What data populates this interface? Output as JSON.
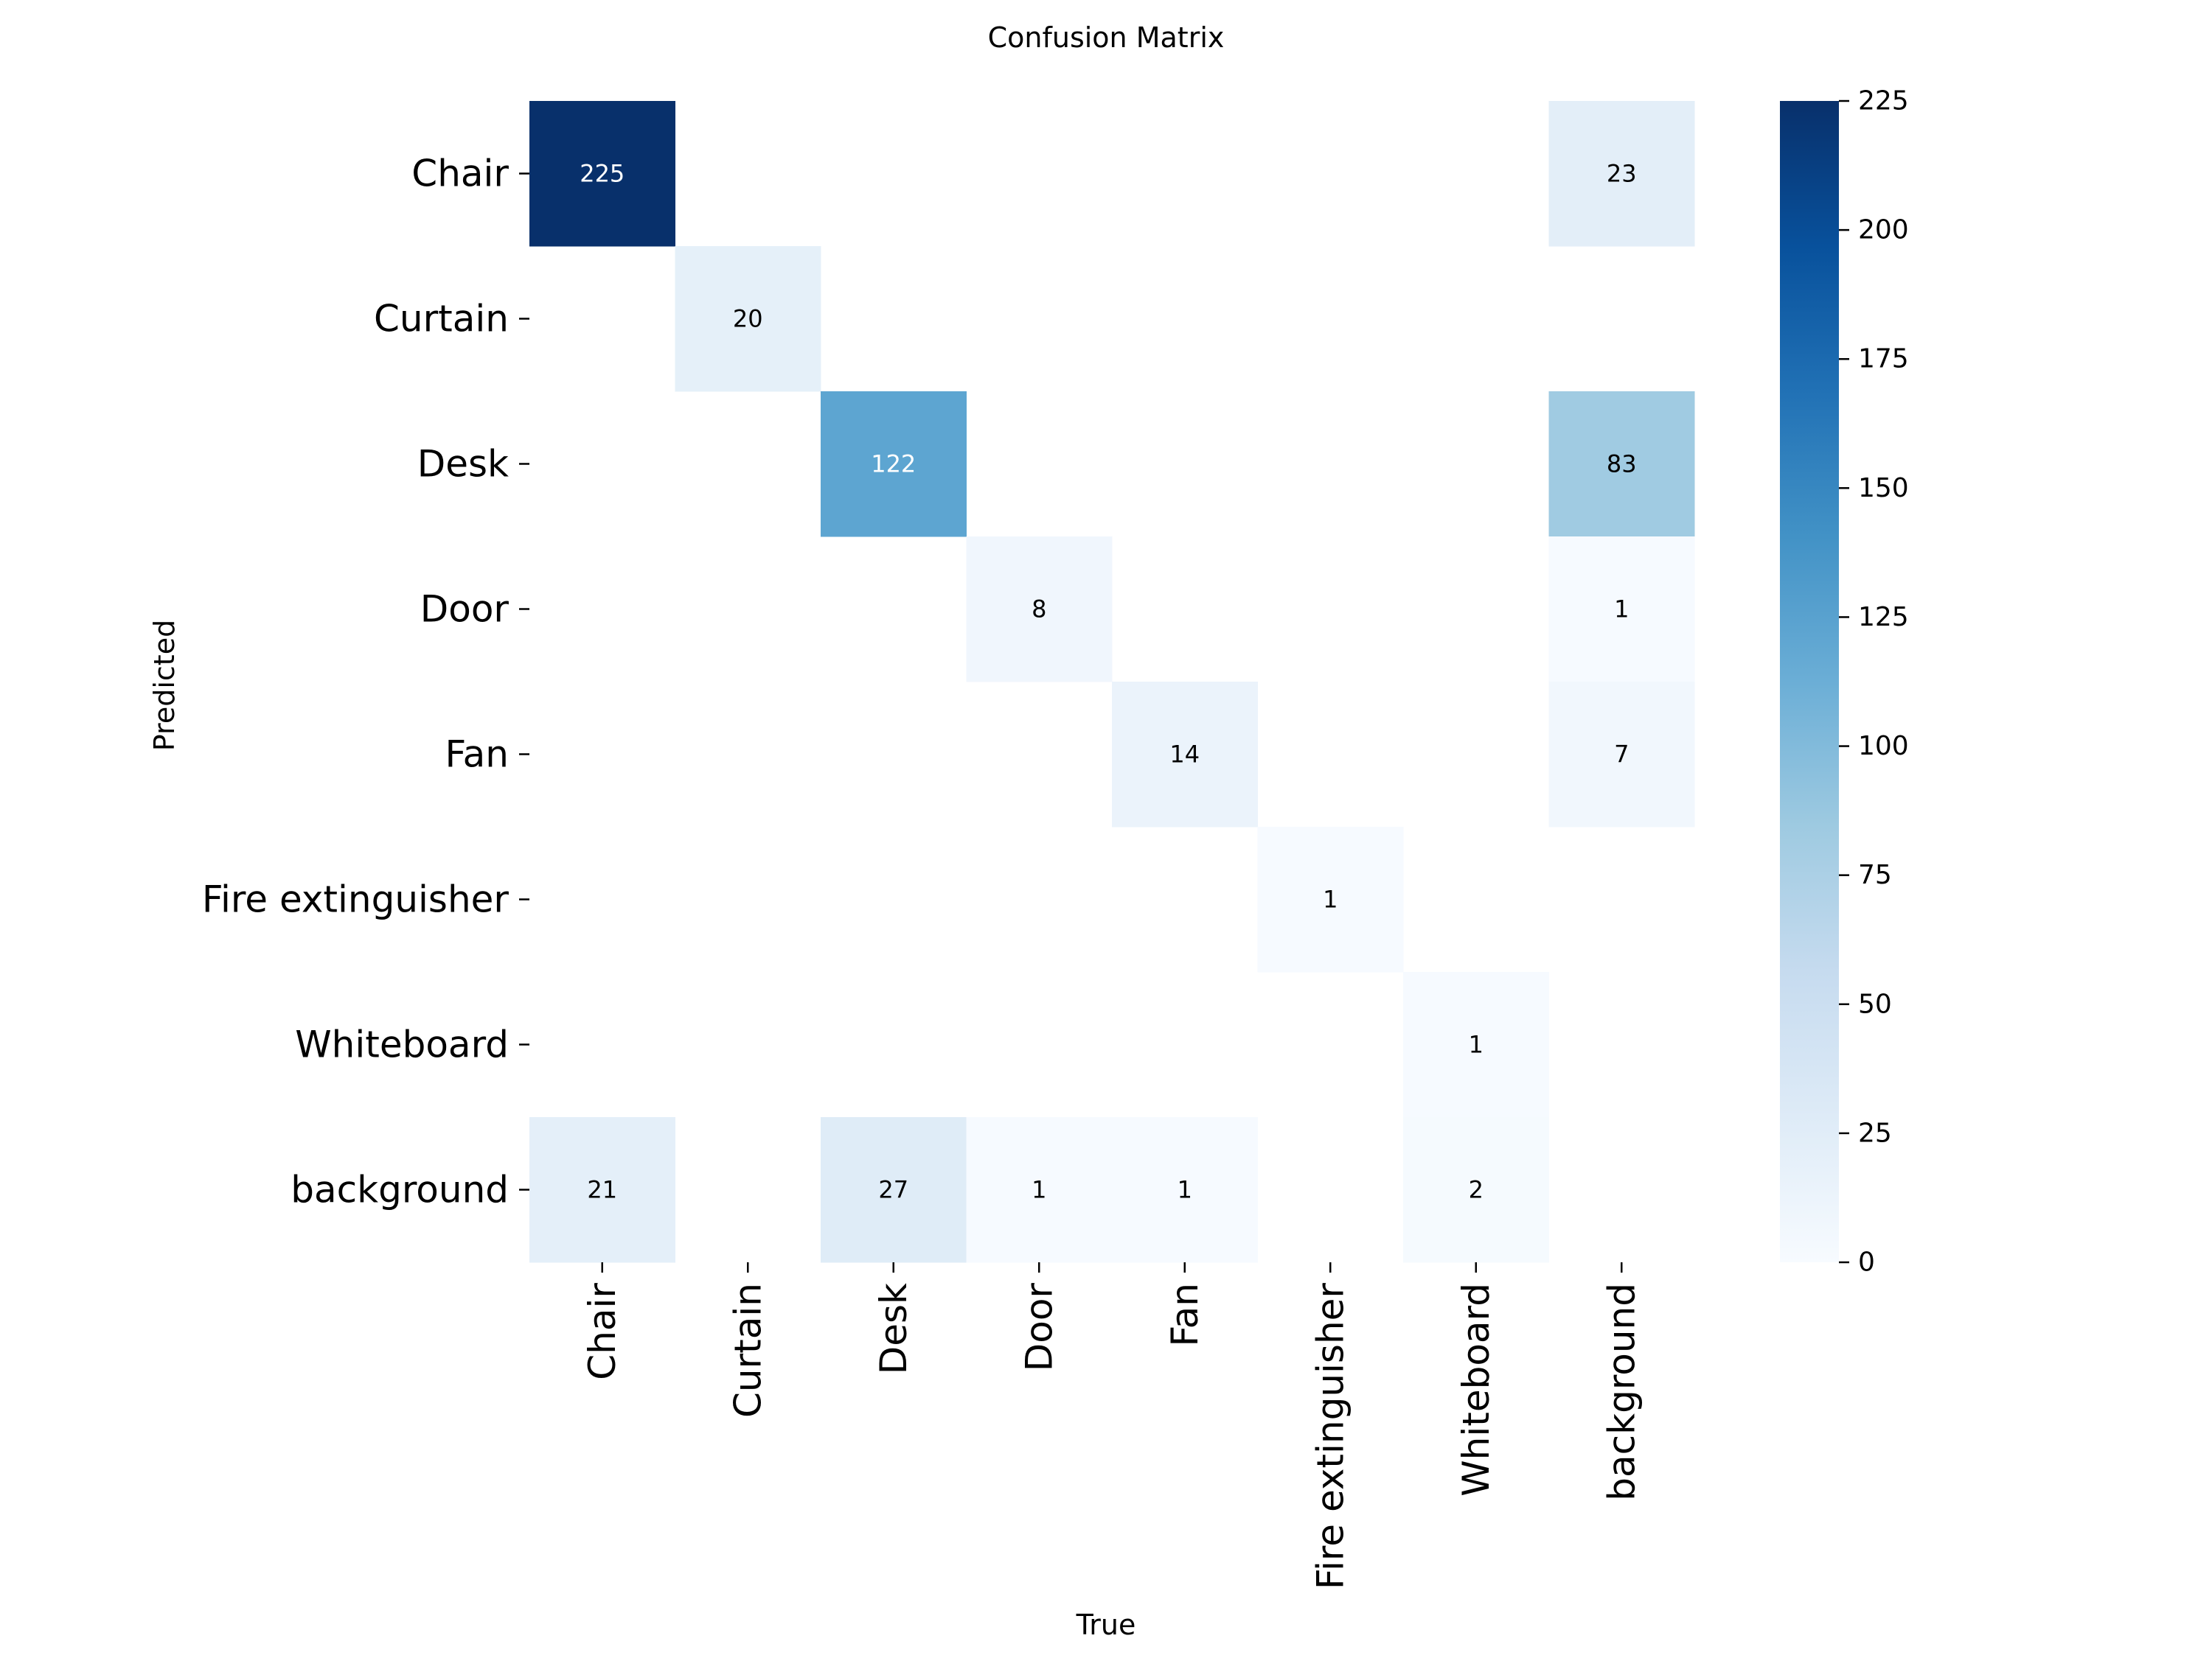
{
  "chart_data": {
    "type": "heatmap",
    "title": "Confusion Matrix",
    "xlabel": "True",
    "ylabel": "Predicted",
    "x_categories": [
      "Chair",
      "Curtain",
      "Desk",
      "Door",
      "Fan",
      "Fire extinguisher",
      "Whiteboard",
      "background"
    ],
    "y_categories": [
      "Chair",
      "Curtain",
      "Desk",
      "Door",
      "Fan",
      "Fire extinguisher",
      "Whiteboard",
      "background"
    ],
    "values": [
      [
        225,
        null,
        null,
        null,
        null,
        null,
        null,
        23
      ],
      [
        null,
        20,
        null,
        null,
        null,
        null,
        null,
        null
      ],
      [
        null,
        null,
        122,
        null,
        null,
        null,
        null,
        83
      ],
      [
        null,
        null,
        null,
        8,
        null,
        null,
        null,
        1
      ],
      [
        null,
        null,
        null,
        null,
        14,
        null,
        null,
        7
      ],
      [
        null,
        null,
        null,
        null,
        null,
        1,
        null,
        null
      ],
      [
        null,
        null,
        null,
        null,
        null,
        null,
        1,
        null
      ],
      [
        21,
        null,
        27,
        1,
        1,
        null,
        2,
        null
      ]
    ],
    "colormap": "Blues",
    "colorbar": {
      "range": [
        0,
        225
      ],
      "ticks": [
        0,
        25,
        50,
        75,
        100,
        125,
        150,
        175,
        200,
        225
      ]
    },
    "grid": false,
    "legend": "colorbar-right"
  }
}
